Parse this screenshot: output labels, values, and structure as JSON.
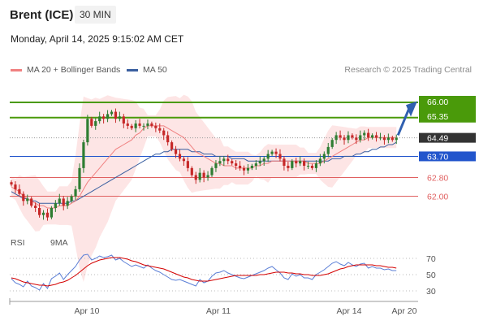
{
  "header": {
    "instrument": "Brent (ICE)",
    "timeframe": "30 MIN",
    "datetime": "Monday, April 14, 2025 9:15:02 AM CET",
    "credit": "Research © 2025 Trading Central"
  },
  "colors": {
    "bollinger_fill": "#fde2e2",
    "ma20": "#f08080",
    "ma50": "#3a5fa0",
    "bull_candle": "#2e7d32",
    "bear_candle": "#c62828",
    "resistance": "#4a9a0a",
    "pivot": "#2255cc",
    "support": "#e06060",
    "last_price_bg": "#333333",
    "rsi": "#5b7fd6",
    "rsi_ma": "#d40000",
    "arrow": "#3060b0"
  },
  "chart_data": [
    {
      "type": "candlestick",
      "title": "Brent (ICE)",
      "legend": [
        {
          "name": "MA 20 + Bollinger Bands",
          "color": "#f08080"
        },
        {
          "name": "MA 50",
          "color": "#3a5fa0"
        }
      ],
      "legend_position": "top-left",
      "x_ticks": [
        "Apr 10",
        "Apr 11",
        "Apr 14",
        "Apr 20"
      ],
      "ylim": [
        60.6,
        66.9
      ],
      "levels": [
        {
          "value": 66.0,
          "label": "66.00",
          "kind": "resistance"
        },
        {
          "value": 65.35,
          "label": "65.35",
          "kind": "resistance"
        },
        {
          "value": 64.49,
          "label": "64.49",
          "kind": "last"
        },
        {
          "value": 63.7,
          "label": "63.70",
          "kind": "pivot"
        },
        {
          "value": 62.8,
          "label": "62.80",
          "kind": "support"
        },
        {
          "value": 62.0,
          "label": "62.00",
          "kind": "support"
        }
      ],
      "close": [
        62.5,
        62.3,
        62.1,
        61.8,
        61.9,
        61.6,
        61.5,
        61.2,
        61.3,
        61.1,
        61.5,
        61.7,
        61.9,
        61.6,
        61.8,
        62.0,
        62.3,
        63.2,
        64.3,
        65.3,
        65.0,
        65.2,
        65.4,
        65.3,
        65.5,
        65.6,
        65.3,
        65.4,
        65.1,
        65.0,
        64.9,
        65.1,
        65.0,
        65.0,
        65.1,
        65.0,
        64.9,
        64.8,
        64.6,
        64.3,
        64.0,
        63.8,
        63.6,
        63.5,
        63.2,
        62.9,
        62.7,
        63.0,
        62.8,
        62.9,
        63.2,
        63.4,
        63.5,
        63.6,
        63.5,
        63.4,
        63.3,
        63.2,
        63.1,
        63.2,
        63.3,
        63.4,
        63.5,
        63.6,
        63.8,
        63.9,
        63.8,
        63.6,
        63.3,
        63.2,
        63.5,
        63.4,
        63.5,
        63.3,
        63.3,
        63.2,
        63.4,
        63.6,
        63.8,
        64.1,
        64.4,
        64.6,
        64.5,
        64.4,
        64.6,
        64.5,
        64.4,
        64.6,
        64.7,
        64.5,
        64.6,
        64.5,
        64.5,
        64.4,
        64.5,
        64.4,
        64.49
      ],
      "ma20": [
        62.4,
        62.3,
        62.2,
        62.0,
        61.9,
        61.8,
        61.7,
        61.6,
        61.6,
        61.5,
        61.5,
        61.5,
        61.6,
        61.6,
        61.6,
        61.7,
        61.8,
        62.0,
        62.3,
        62.6,
        62.8,
        63.0,
        63.2,
        63.4,
        63.6,
        63.8,
        64.0,
        64.1,
        64.2,
        64.3,
        64.4,
        64.6,
        64.7,
        64.9,
        65.0,
        65.0,
        65.0,
        65.0,
        65.0,
        64.9,
        64.8,
        64.7,
        64.6,
        64.5,
        64.3,
        64.1,
        63.9,
        63.8,
        63.7,
        63.6,
        63.5,
        63.4,
        63.4,
        63.3,
        63.3,
        63.3,
        63.2,
        63.2,
        63.2,
        63.2,
        63.2,
        63.3,
        63.3,
        63.4,
        63.4,
        63.5,
        63.5,
        63.5,
        63.5,
        63.5,
        63.5,
        63.5,
        63.5,
        63.5,
        63.4,
        63.4,
        63.4,
        63.4,
        63.5,
        63.6,
        63.7,
        63.8,
        63.9,
        64.0,
        64.1,
        64.2,
        64.3,
        64.4,
        64.4,
        64.5,
        64.5,
        64.5,
        64.5,
        64.5,
        64.5,
        64.5,
        64.5
      ],
      "ma50": [
        62.2,
        62.1,
        62.0,
        61.9,
        61.9,
        61.8,
        61.8,
        61.7,
        61.7,
        61.7,
        61.7,
        61.7,
        61.7,
        61.7,
        61.7,
        61.8,
        61.8,
        61.9,
        62.0,
        62.1,
        62.2,
        62.3,
        62.4,
        62.5,
        62.6,
        62.7,
        62.8,
        62.9,
        63.0,
        63.1,
        63.2,
        63.3,
        63.4,
        63.5,
        63.6,
        63.7,
        63.8,
        63.8,
        63.9,
        63.9,
        64.0,
        64.0,
        64.0,
        64.0,
        64.0,
        63.9,
        63.9,
        63.9,
        63.8,
        63.8,
        63.8,
        63.7,
        63.7,
        63.7,
        63.7,
        63.6,
        63.6,
        63.6,
        63.6,
        63.5,
        63.5,
        63.5,
        63.5,
        63.5,
        63.5,
        63.5,
        63.5,
        63.5,
        63.5,
        63.5,
        63.5,
        63.5,
        63.5,
        63.5,
        63.5,
        63.5,
        63.5,
        63.5,
        63.5,
        63.5,
        63.6,
        63.6,
        63.6,
        63.7,
        63.7,
        63.7,
        63.8,
        63.8,
        63.9,
        63.9,
        64.0,
        64.0,
        64.1,
        64.1,
        64.2,
        64.2,
        64.3
      ]
    },
    {
      "type": "line",
      "legend": [
        {
          "name": "RSI",
          "color": "#5b7fd6"
        },
        {
          "name": "9MA",
          "color": "#d40000"
        }
      ],
      "ylim": [
        20,
        80
      ],
      "y_ticks": [
        70,
        50,
        30
      ],
      "rsi": [
        45,
        40,
        38,
        35,
        42,
        36,
        34,
        31,
        39,
        33,
        45,
        48,
        52,
        44,
        50,
        55,
        60,
        68,
        74,
        75,
        68,
        70,
        73,
        71,
        72,
        74,
        68,
        70,
        66,
        63,
        60,
        62,
        60,
        58,
        62,
        58,
        55,
        53,
        50,
        47,
        44,
        43,
        44,
        42,
        40,
        38,
        36,
        44,
        40,
        42,
        48,
        52,
        53,
        55,
        52,
        50,
        48,
        46,
        45,
        47,
        49,
        51,
        53,
        55,
        58,
        60,
        56,
        52,
        46,
        44,
        51,
        48,
        50,
        46,
        46,
        44,
        50,
        53,
        56,
        60,
        64,
        66,
        63,
        61,
        65,
        62,
        60,
        63,
        64,
        58,
        60,
        58,
        58,
        56,
        57,
        55,
        55
      ],
      "rsi_ma": [
        46,
        45,
        43,
        41,
        40,
        39,
        38,
        37,
        37,
        36,
        37,
        38,
        40,
        41,
        43,
        46,
        49,
        53,
        57,
        61,
        64,
        66,
        68,
        69,
        70,
        71,
        71,
        71,
        70,
        69,
        67,
        66,
        64,
        62,
        61,
        60,
        59,
        58,
        57,
        55,
        53,
        51,
        49,
        47,
        46,
        44,
        43,
        42,
        42,
        42,
        43,
        44,
        45,
        46,
        47,
        48,
        49,
        49,
        49,
        49,
        49,
        49,
        50,
        50,
        51,
        52,
        53,
        53,
        53,
        52,
        52,
        51,
        51,
        50,
        50,
        49,
        49,
        49,
        50,
        51,
        53,
        55,
        57,
        58,
        60,
        61,
        62,
        62,
        62,
        62,
        62,
        61,
        61,
        60,
        59,
        59,
        58
      ]
    }
  ]
}
